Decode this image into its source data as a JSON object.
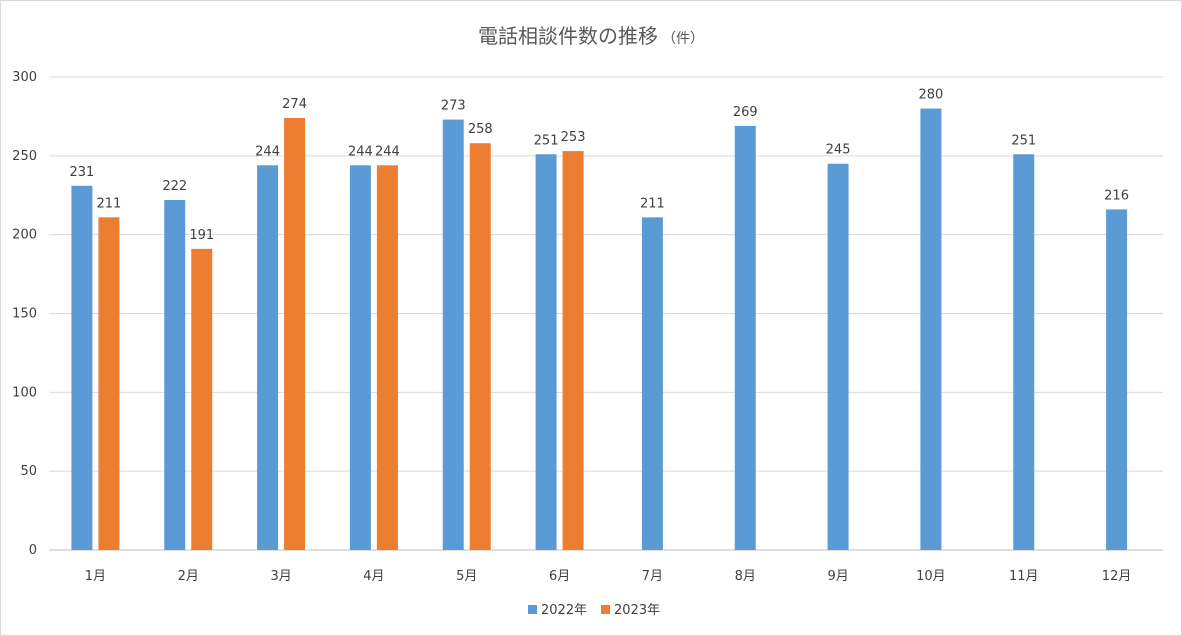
{
  "chart_data": {
    "type": "bar",
    "title": "電話相談件数の推移",
    "title_unit": "（件）",
    "categories": [
      "1月",
      "2月",
      "3月",
      "4月",
      "5月",
      "6月",
      "7月",
      "8月",
      "9月",
      "10月",
      "11月",
      "12月"
    ],
    "series": [
      {
        "name": "2022年",
        "color": "#5b9bd5",
        "values": [
          231,
          222,
          244,
          244,
          273,
          251,
          211,
          269,
          245,
          280,
          251,
          216
        ]
      },
      {
        "name": "2023年",
        "color": "#ed7d31",
        "values": [
          211,
          191,
          274,
          244,
          258,
          253,
          null,
          null,
          null,
          null,
          null,
          null
        ]
      }
    ],
    "ylim": [
      0,
      300
    ],
    "yticks": [
      0,
      50,
      100,
      150,
      200,
      250,
      300
    ],
    "grid": true,
    "data_labels": true,
    "legend": "bottom"
  }
}
